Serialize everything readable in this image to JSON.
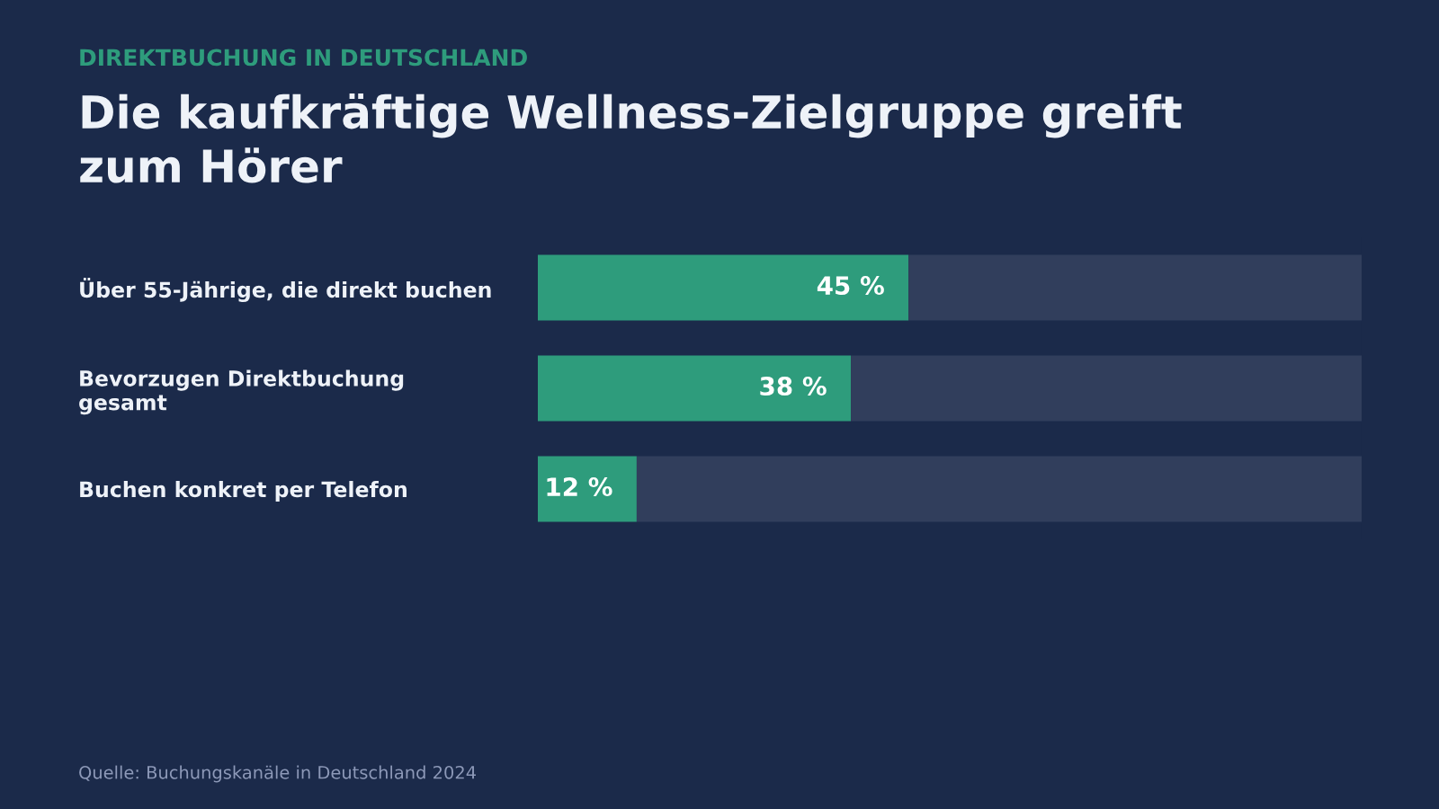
{
  "chart_data": {
    "type": "bar",
    "orientation": "horizontal",
    "stacked": true,
    "subtitle": "DIREKTBUCHUNG IN DEUTSCHLAND",
    "title": "Die kaufkräftige Wellness-Zielgruppe greift zum Hörer",
    "categories": [
      "Über 55-Jährige, die direkt buchen",
      "Bevorzugen Direktbuchung gesamt",
      "Buchen konkret per Telefon"
    ],
    "series": [
      {
        "color": "#2e9c7c",
        "values": [
          45,
          38,
          12
        ],
        "value_labels": [
          "45 %",
          "38 %",
          "12 %"
        ]
      },
      {
        "color": "#313e5c",
        "values": [
          55,
          62,
          88
        ]
      }
    ],
    "xlim": [
      0,
      100
    ],
    "tick_labels": "y",
    "annotations": [
      "Quelle: Buchungskanäle in Deutschland 2024"
    ]
  }
}
